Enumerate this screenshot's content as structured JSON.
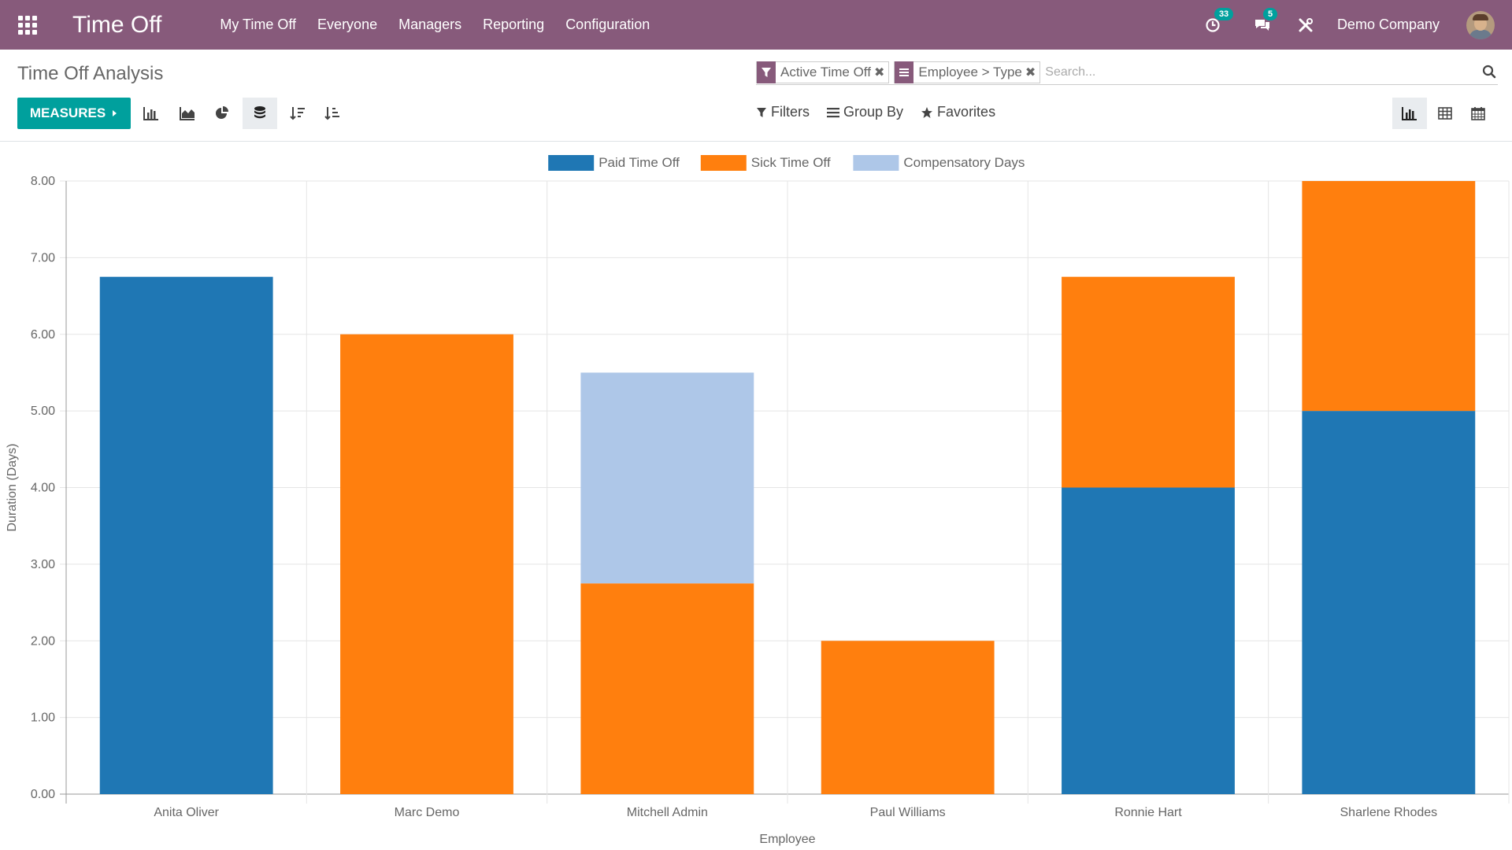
{
  "navbar": {
    "app_name": "Time Off",
    "menu": [
      "My Time Off",
      "Everyone",
      "Managers",
      "Reporting",
      "Configuration"
    ],
    "activity_count": "33",
    "messages_count": "5",
    "company": "Demo Company",
    "color": "#875a7b"
  },
  "control_panel": {
    "title": "Time Off Analysis",
    "facets": [
      {
        "icon": "filter-icon",
        "label": "Active Time Off"
      },
      {
        "icon": "group-by-icon",
        "label": "Employee > Type"
      }
    ],
    "search_placeholder": "Search...",
    "measures_label": "MEASURES",
    "filters_label": "Filters",
    "group_by_label": "Group By",
    "favorites_label": "Favorites",
    "chart_tools": [
      "bar-chart-icon",
      "line-chart-icon",
      "pie-chart-icon",
      "stacked-icon",
      "sort-descending-icon",
      "sort-ascending-icon"
    ],
    "active_chart_tool": "stacked-icon",
    "views": [
      "graph-view-icon",
      "pivot-view-icon",
      "calendar-view-icon"
    ],
    "active_view": "graph-view-icon",
    "accent": "#00a09d"
  },
  "chart_data": {
    "type": "bar",
    "stacked": true,
    "categories": [
      "Anita Oliver",
      "Marc Demo",
      "Mitchell Admin",
      "Paul Williams",
      "Ronnie Hart",
      "Sharlene Rhodes"
    ],
    "series": [
      {
        "name": "Paid Time Off",
        "color": "#1f77b4",
        "values": [
          6.75,
          0,
          0,
          0,
          4.0,
          5.0
        ]
      },
      {
        "name": "Sick Time Off",
        "color": "#ff7f0e",
        "values": [
          0,
          6.0,
          2.75,
          2.0,
          2.75,
          3.0
        ]
      },
      {
        "name": "Compensatory Days",
        "color": "#aec7e8",
        "values": [
          0,
          0,
          2.75,
          0,
          0,
          0
        ]
      }
    ],
    "ylim": [
      0,
      8
    ],
    "yticks": [
      "0.00",
      "1.00",
      "2.00",
      "3.00",
      "4.00",
      "5.00",
      "6.00",
      "7.00",
      "8.00"
    ],
    "xlabel": "Employee",
    "ylabel": "Duration (Days)",
    "legend_position": "top-center",
    "grid": true
  }
}
